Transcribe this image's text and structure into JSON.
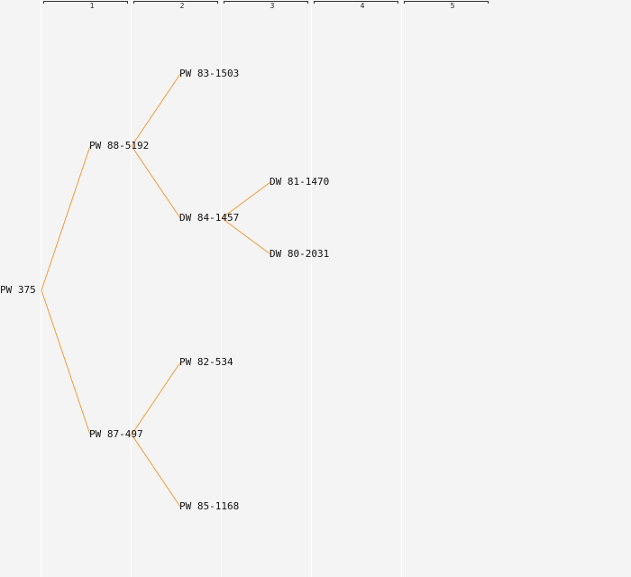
{
  "generations": [
    "1",
    "2",
    "3",
    "4",
    "5"
  ],
  "tree": {
    "name": "PW 375",
    "children": [
      {
        "name": "PW 88-5192",
        "children": [
          {
            "name": "PW 83-1503"
          },
          {
            "name": "DW 84-1457",
            "children": [
              {
                "name": "DW 81-1470"
              },
              {
                "name": "DW 80-2031"
              }
            ]
          }
        ]
      },
      {
        "name": "PW 87-497",
        "children": [
          {
            "name": "PW 82-534"
          },
          {
            "name": "PW 85-1168"
          }
        ]
      }
    ]
  },
  "colors": {
    "background": "#f4f4f4",
    "divider": "#ffffff",
    "link": "#f29a3a",
    "text": "#111111"
  }
}
